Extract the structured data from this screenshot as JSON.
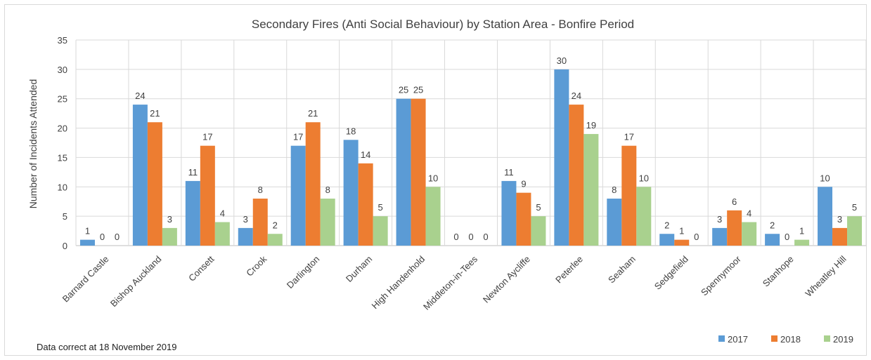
{
  "chart_data": {
    "type": "bar",
    "title": "Secondary Fires (Anti Social Behaviour) by Station Area - Bonfire Period",
    "xlabel": "",
    "ylabel": "Number of Incidents Attended",
    "ylim": [
      0,
      35
    ],
    "yticks": [
      0,
      5,
      10,
      15,
      20,
      25,
      30,
      35
    ],
    "grid": true,
    "legend_position": "bottom-right",
    "categories": [
      "Barnard Castle",
      "Bishop Auckland",
      "Consett",
      "Crook",
      "Darlington",
      "Durham",
      "High Handenhold",
      "Middleton-in-Tees",
      "Newton Aycliffe",
      "Peterlee",
      "Seaham",
      "Sedgefield",
      "Spennymoor",
      "Stanhope",
      "Wheatley Hill"
    ],
    "series": [
      {
        "name": "2017",
        "color": "#5b9bd5",
        "values": [
          1,
          24,
          11,
          3,
          17,
          18,
          25,
          0,
          11,
          30,
          8,
          2,
          3,
          2,
          10
        ]
      },
      {
        "name": "2018",
        "color": "#ed7d31",
        "values": [
          0,
          21,
          17,
          8,
          21,
          14,
          25,
          0,
          9,
          24,
          17,
          1,
          6,
          0,
          3
        ]
      },
      {
        "name": "2019",
        "color": "#a9d18e",
        "values": [
          0,
          3,
          4,
          2,
          8,
          5,
          10,
          0,
          5,
          19,
          10,
          0,
          4,
          1,
          5
        ]
      }
    ],
    "footnote": "Data correct at 18 November 2019"
  }
}
